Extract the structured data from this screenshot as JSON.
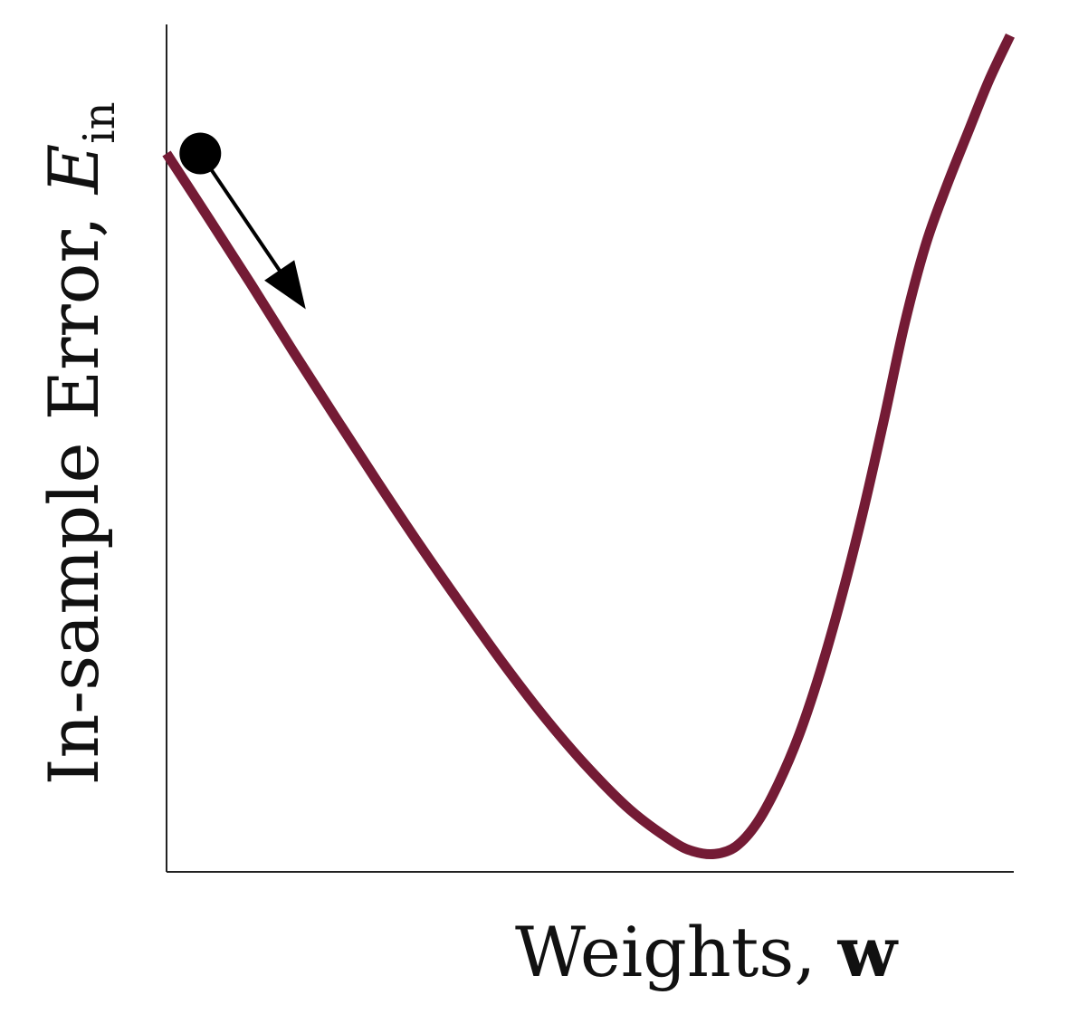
{
  "chart_data": {
    "type": "line",
    "title": "",
    "xlabel": {
      "text": "Weights, ",
      "symbol": "w"
    },
    "ylabel": {
      "text": "In-sample Error, ",
      "symbol": "E",
      "subscript": "in"
    },
    "xlim": [
      0,
      1
    ],
    "ylim": [
      0,
      1
    ],
    "ticks": "none",
    "grid": false,
    "legend": "none",
    "series": [
      {
        "color": "#741b35",
        "x": [
          0.0,
          0.05,
          0.1,
          0.15,
          0.2,
          0.25,
          0.3,
          0.35,
          0.4,
          0.45,
          0.5,
          0.55,
          0.6,
          0.625,
          0.65,
          0.675,
          0.7,
          0.725,
          0.75,
          0.775,
          0.8,
          0.825,
          0.85,
          0.875,
          0.9,
          0.925,
          0.95,
          0.975,
          1.0
        ],
        "y": [
          0.85,
          0.773,
          0.695,
          0.615,
          0.537,
          0.46,
          0.385,
          0.313,
          0.243,
          0.178,
          0.12,
          0.07,
          0.033,
          0.021,
          0.018,
          0.027,
          0.055,
          0.101,
          0.16,
          0.235,
          0.323,
          0.422,
          0.532,
          0.648,
          0.742,
          0.812,
          0.875,
          0.937,
          0.99
        ]
      }
    ],
    "marker": {
      "x": 0.04,
      "y": 0.85,
      "color": "#000000"
    },
    "arrow": {
      "from": [
        0.04,
        0.85
      ],
      "to": [
        0.165,
        0.665
      ],
      "color": "#000000"
    }
  }
}
